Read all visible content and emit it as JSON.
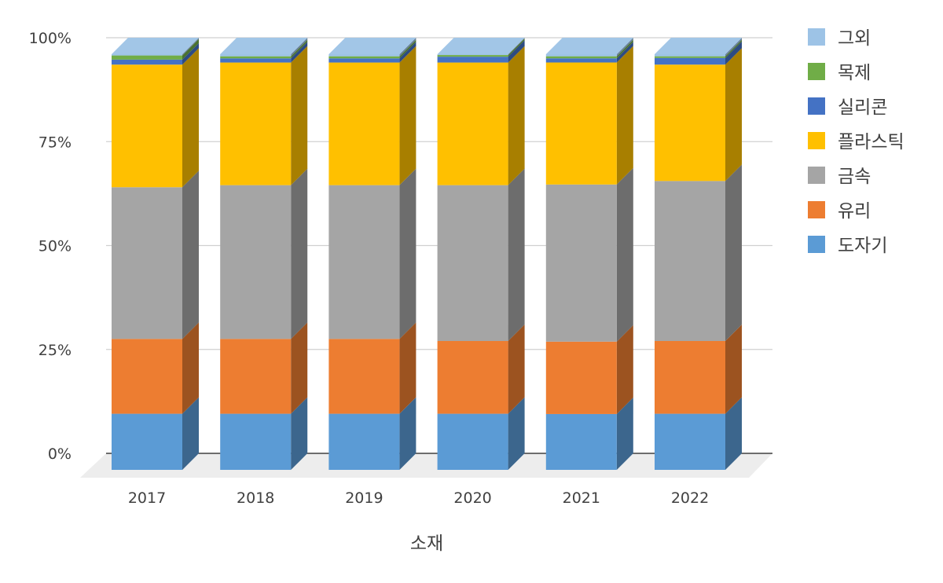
{
  "chart_data": {
    "type": "bar",
    "stacked": "percent",
    "three_d": true,
    "categories": [
      "2017",
      "2018",
      "2019",
      "2020",
      "2021",
      "2022"
    ],
    "xlabel": "소재",
    "ylabel": "",
    "y_ticks": [
      "0%",
      "25%",
      "50%",
      "75%",
      "100%"
    ],
    "ylim": [
      0,
      100
    ],
    "grid": true,
    "legend_position": "right",
    "series": [
      {
        "name": "도자기",
        "color": "#5B9BD5",
        "values": [
          13.5,
          13.5,
          13.5,
          13.5,
          13.5,
          13.5
        ]
      },
      {
        "name": "유리",
        "color": "#ED7D31",
        "values": [
          18,
          18,
          18,
          17.5,
          17.5,
          17.5
        ]
      },
      {
        "name": "금속",
        "color": "#A5A5A5",
        "values": [
          36.5,
          37,
          37,
          37.5,
          38,
          38.5
        ]
      },
      {
        "name": "플라스틱",
        "color": "#FFC000",
        "values": [
          29.5,
          29.5,
          29.5,
          29.5,
          29.5,
          28
        ]
      },
      {
        "name": "실리콘",
        "color": "#4472C4",
        "values": [
          1.2,
          1.0,
          1.0,
          1.4,
          1.0,
          1.6
        ]
      },
      {
        "name": "목제",
        "color": "#70AD47",
        "values": [
          1.0,
          0.5,
          0.5,
          0.4,
          0.5,
          0.4
        ]
      },
      {
        "name": "그외",
        "color": "#9DC3E6",
        "values": [
          0.3,
          0.5,
          0.5,
          0.2,
          0.5,
          0.5
        ]
      }
    ]
  }
}
